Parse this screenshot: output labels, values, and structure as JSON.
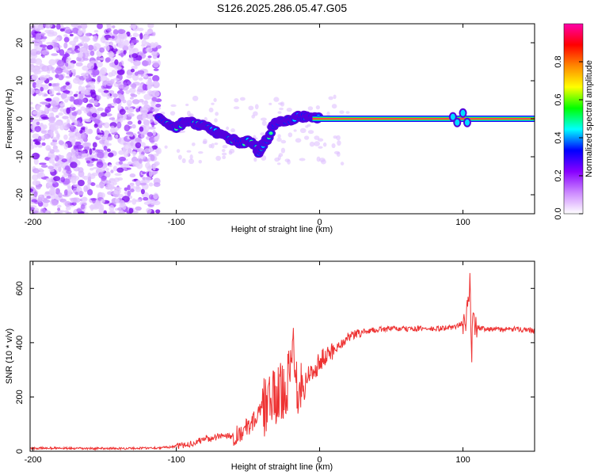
{
  "title": "S126.2025.286.05.47.G05",
  "chart_data": [
    {
      "type": "heatmap",
      "title": "S126.2025.286.05.47.G05",
      "xlabel": "Height of straight line (km)",
      "ylabel": "Frequency (Hz)",
      "xlim": [
        -202,
        150
      ],
      "ylim": [
        -25,
        25
      ],
      "x_ticks": [
        -200,
        -100,
        0,
        100
      ],
      "x_tick_labels": [
        "-200",
        "-100",
        "0",
        "100"
      ],
      "y_ticks": [
        -20,
        -10,
        0,
        10,
        20
      ],
      "y_tick_labels": [
        "-20",
        "-10",
        "0",
        "10",
        "20"
      ],
      "colorbar": {
        "label": "Normalized spectral amplitude",
        "range": [
          0,
          1
        ],
        "ticks": [
          0.0,
          0.2,
          0.4,
          0.6,
          0.8
        ],
        "tick_labels": [
          "0.0",
          "0.2",
          "0.4",
          "0.6",
          "0.8"
        ],
        "colors": [
          "#ffffff",
          "#cc88ff",
          "#8800ff",
          "#0000ff",
          "#00ffff",
          "#00ff00",
          "#ffff00",
          "#ff8800",
          "#ff0000",
          "#ff00aa"
        ]
      },
      "ridge": {
        "x": [
          -112,
          -105,
          -100,
          -95,
          -90,
          -85,
          -80,
          -75,
          -70,
          -65,
          -60,
          -55,
          -50,
          -45,
          -42,
          -40,
          -36,
          -32,
          -28,
          -24,
          -20,
          -15,
          -10,
          -5,
          0,
          10,
          20,
          40,
          60,
          80,
          90,
          93,
          96,
          100,
          103,
          110,
          130,
          150
        ],
        "y": [
          1,
          -2,
          -2.5,
          -1,
          -1,
          -1.5,
          -2,
          -3,
          -4,
          -5,
          -5.5,
          -6.5,
          -6,
          -7,
          -9,
          -7,
          -5,
          -1.5,
          -1,
          -0.5,
          -0.2,
          0.5,
          0.5,
          0.3,
          0,
          0,
          0,
          0,
          0,
          0,
          0,
          0.5,
          -1,
          1.5,
          -1,
          0,
          0,
          0
        ]
      },
      "noise_region_x": [
        -202,
        -112
      ]
    },
    {
      "type": "line",
      "xlabel": "Height of straight line (km)",
      "ylabel": "SNR (10 * v/v)",
      "xlim": [
        -202,
        150
      ],
      "ylim": [
        0,
        700
      ],
      "x_ticks": [
        -200,
        -100,
        0,
        100
      ],
      "x_tick_labels": [
        "-200",
        "-100",
        "0",
        "100"
      ],
      "y_ticks": [
        0,
        200,
        400,
        600
      ],
      "y_tick_labels": [
        "0",
        "200",
        "400",
        "600"
      ],
      "series": [
        {
          "name": "SNR",
          "color": "#ee3333",
          "x": [
            -202,
            -190,
            -180,
            -170,
            -160,
            -150,
            -140,
            -130,
            -120,
            -110,
            -100,
            -95,
            -90,
            -85,
            -80,
            -75,
            -70,
            -65,
            -60,
            -55,
            -50,
            -45,
            -40,
            -35,
            -30,
            -25,
            -22,
            -20,
            -18,
            -16,
            -15,
            -14,
            -12,
            -10,
            -8,
            -5,
            0,
            5,
            10,
            15,
            20,
            25,
            30,
            40,
            50,
            60,
            70,
            80,
            90,
            95,
            100,
            102,
            104,
            105,
            106,
            107,
            108,
            110,
            120,
            130,
            140,
            150
          ],
          "y": [
            10,
            12,
            11,
            10,
            10,
            11,
            10,
            11,
            12,
            13,
            18,
            22,
            28,
            35,
            48,
            45,
            55,
            60,
            55,
            70,
            90,
            120,
            155,
            180,
            200,
            230,
            260,
            300,
            410,
            260,
            240,
            270,
            230,
            265,
            280,
            290,
            330,
            350,
            375,
            395,
            420,
            430,
            440,
            448,
            452,
            450,
            452,
            450,
            455,
            460,
            470,
            480,
            560,
            640,
            300,
            560,
            470,
            455,
            450,
            448,
            450,
            445
          ]
        }
      ]
    }
  ]
}
